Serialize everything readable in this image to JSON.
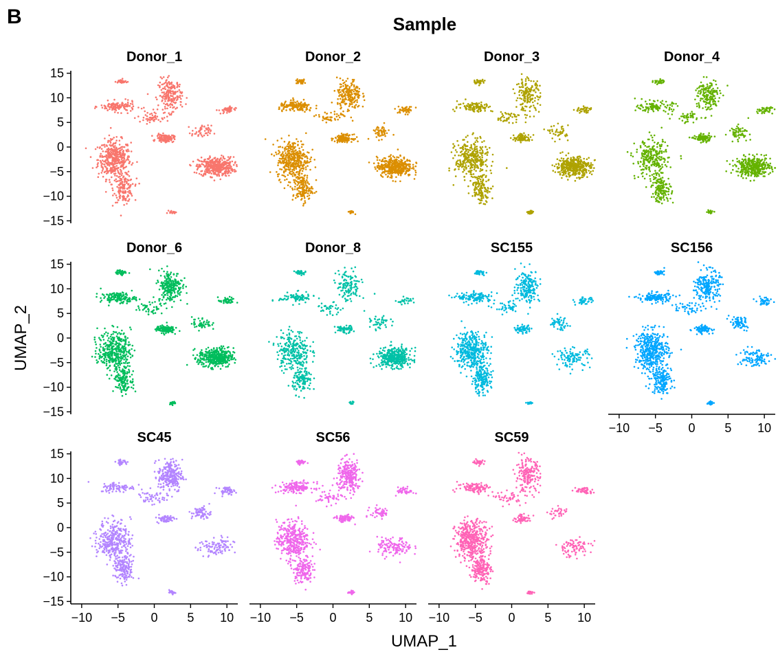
{
  "panel_label": "B",
  "chart_data": {
    "type": "scatter",
    "title": "Sample",
    "xlabel": "UMAP_1",
    "ylabel": "UMAP_2",
    "xlim": [
      -11.5,
      11.5
    ],
    "ylim": [
      -15.5,
      15.5
    ],
    "x_ticks": [
      -10,
      -5,
      0,
      5,
      10
    ],
    "x_tick_labels": [
      "−10",
      "−5",
      "0",
      "5",
      "10"
    ],
    "y_ticks": [
      15,
      10,
      5,
      0,
      -5,
      -10,
      -15
    ],
    "y_tick_labels": [
      "15",
      "10",
      "5",
      "0",
      "−5",
      "−10",
      "−15"
    ],
    "grid": false,
    "legend": "none",
    "clusters": [
      {
        "id": "big_left",
        "cx": -5.5,
        "cy": -2.5,
        "sx": 1.5,
        "sy": 2.6
      },
      {
        "id": "left_tail",
        "cx": -4.2,
        "cy": -8.5,
        "sx": 0.9,
        "sy": 1.8
      },
      {
        "id": "big_right",
        "cx": 8.5,
        "cy": -4.0,
        "sx": 1.6,
        "sy": 1.3
      },
      {
        "id": "top_center",
        "cx": 2.2,
        "cy": 10.5,
        "sx": 1.1,
        "sy": 2.2
      },
      {
        "id": "top_left",
        "cx": -5.0,
        "cy": 8.2,
        "sx": 1.6,
        "sy": 0.7
      },
      {
        "id": "top_left_small",
        "cx": -4.5,
        "cy": 13.3,
        "sx": 0.5,
        "sy": 0.3
      },
      {
        "id": "mid_center",
        "cx": 1.5,
        "cy": 1.8,
        "sx": 0.8,
        "sy": 0.5
      },
      {
        "id": "right_upper",
        "cx": 10.0,
        "cy": 7.5,
        "sx": 0.8,
        "sy": 0.5
      },
      {
        "id": "right_strand",
        "cx": 6.5,
        "cy": 3.0,
        "sx": 0.9,
        "sy": 0.9
      },
      {
        "id": "mid_strand",
        "cx": -0.5,
        "cy": 6.0,
        "sx": 1.2,
        "sy": 0.8
      },
      {
        "id": "bottom_small",
        "cx": 2.5,
        "cy": -13.2,
        "sx": 0.3,
        "sy": 0.2
      }
    ],
    "series": [
      {
        "name": "Donor_1",
        "color": "#F8766D",
        "weights": [
          1.0,
          0.35,
          1.0,
          0.5,
          0.3,
          0.08,
          0.3,
          0.1,
          0.12,
          0.1,
          0.05
        ]
      },
      {
        "name": "Donor_2",
        "color": "#DB8E00",
        "weights": [
          0.9,
          0.35,
          1.0,
          0.5,
          0.35,
          0.08,
          0.3,
          0.1,
          0.12,
          0.1,
          0.05
        ]
      },
      {
        "name": "Donor_3",
        "color": "#AEA200",
        "weights": [
          0.8,
          0.3,
          1.0,
          0.4,
          0.25,
          0.08,
          0.2,
          0.1,
          0.1,
          0.1,
          0.05
        ]
      },
      {
        "name": "Donor_4",
        "color": "#64B200",
        "weights": [
          0.6,
          0.35,
          0.9,
          0.4,
          0.25,
          0.08,
          0.25,
          0.1,
          0.15,
          0.1,
          0.05
        ]
      },
      {
        "name": "Donor_6",
        "color": "#00BD5C",
        "weights": [
          0.9,
          0.35,
          1.0,
          0.55,
          0.35,
          0.08,
          0.35,
          0.1,
          0.12,
          0.1,
          0.05
        ]
      },
      {
        "name": "Donor_8",
        "color": "#00C1A7",
        "weights": [
          0.6,
          0.3,
          0.9,
          0.3,
          0.2,
          0.08,
          0.15,
          0.06,
          0.1,
          0.08,
          0.04
        ]
      },
      {
        "name": "SC155",
        "color": "#00BADE",
        "weights": [
          0.9,
          0.4,
          0.25,
          0.45,
          0.3,
          0.08,
          0.15,
          0.1,
          0.12,
          0.1,
          0.05
        ]
      },
      {
        "name": "SC156",
        "color": "#00A6FF",
        "weights": [
          1.0,
          0.4,
          0.25,
          0.5,
          0.3,
          0.08,
          0.2,
          0.1,
          0.15,
          0.1,
          0.06
        ]
      },
      {
        "name": "SC45",
        "color": "#B385FF",
        "weights": [
          0.8,
          0.35,
          0.25,
          0.6,
          0.2,
          0.08,
          0.15,
          0.1,
          0.15,
          0.1,
          0.05
        ]
      },
      {
        "name": "SC56",
        "color": "#EF67EB",
        "weights": [
          0.85,
          0.35,
          0.3,
          0.6,
          0.35,
          0.08,
          0.2,
          0.1,
          0.12,
          0.1,
          0.05
        ]
      },
      {
        "name": "SC59",
        "color": "#FF63B6",
        "weights": [
          1.0,
          0.4,
          0.2,
          0.45,
          0.25,
          0.08,
          0.15,
          0.1,
          0.08,
          0.1,
          0.05
        ]
      }
    ]
  }
}
